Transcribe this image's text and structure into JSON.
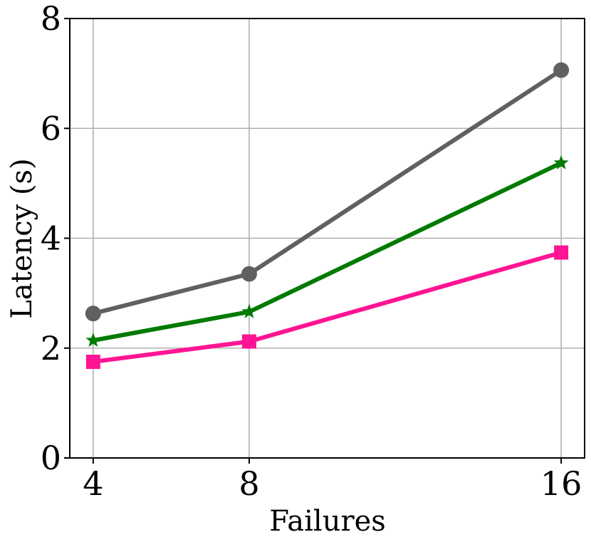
{
  "chart_data": {
    "type": "line",
    "title": "",
    "xlabel": "Failures",
    "ylabel": "Latency (s)",
    "x": [
      4,
      8,
      16
    ],
    "x_ticks": [
      "4",
      "8",
      "16"
    ],
    "y_ticks": [
      "0",
      "2",
      "4",
      "6",
      "8"
    ],
    "xlim": [
      3.4,
      16.6
    ],
    "ylim": [
      0,
      8
    ],
    "grid": true,
    "series": [
      {
        "color": "#606060",
        "marker": "circle",
        "values": [
          2.63,
          3.35,
          7.06
        ]
      },
      {
        "color": "#007a00",
        "marker": "star",
        "values": [
          2.14,
          2.66,
          5.37
        ]
      },
      {
        "color": "#ff1493",
        "marker": "square",
        "values": [
          1.75,
          2.12,
          3.74
        ]
      }
    ]
  }
}
